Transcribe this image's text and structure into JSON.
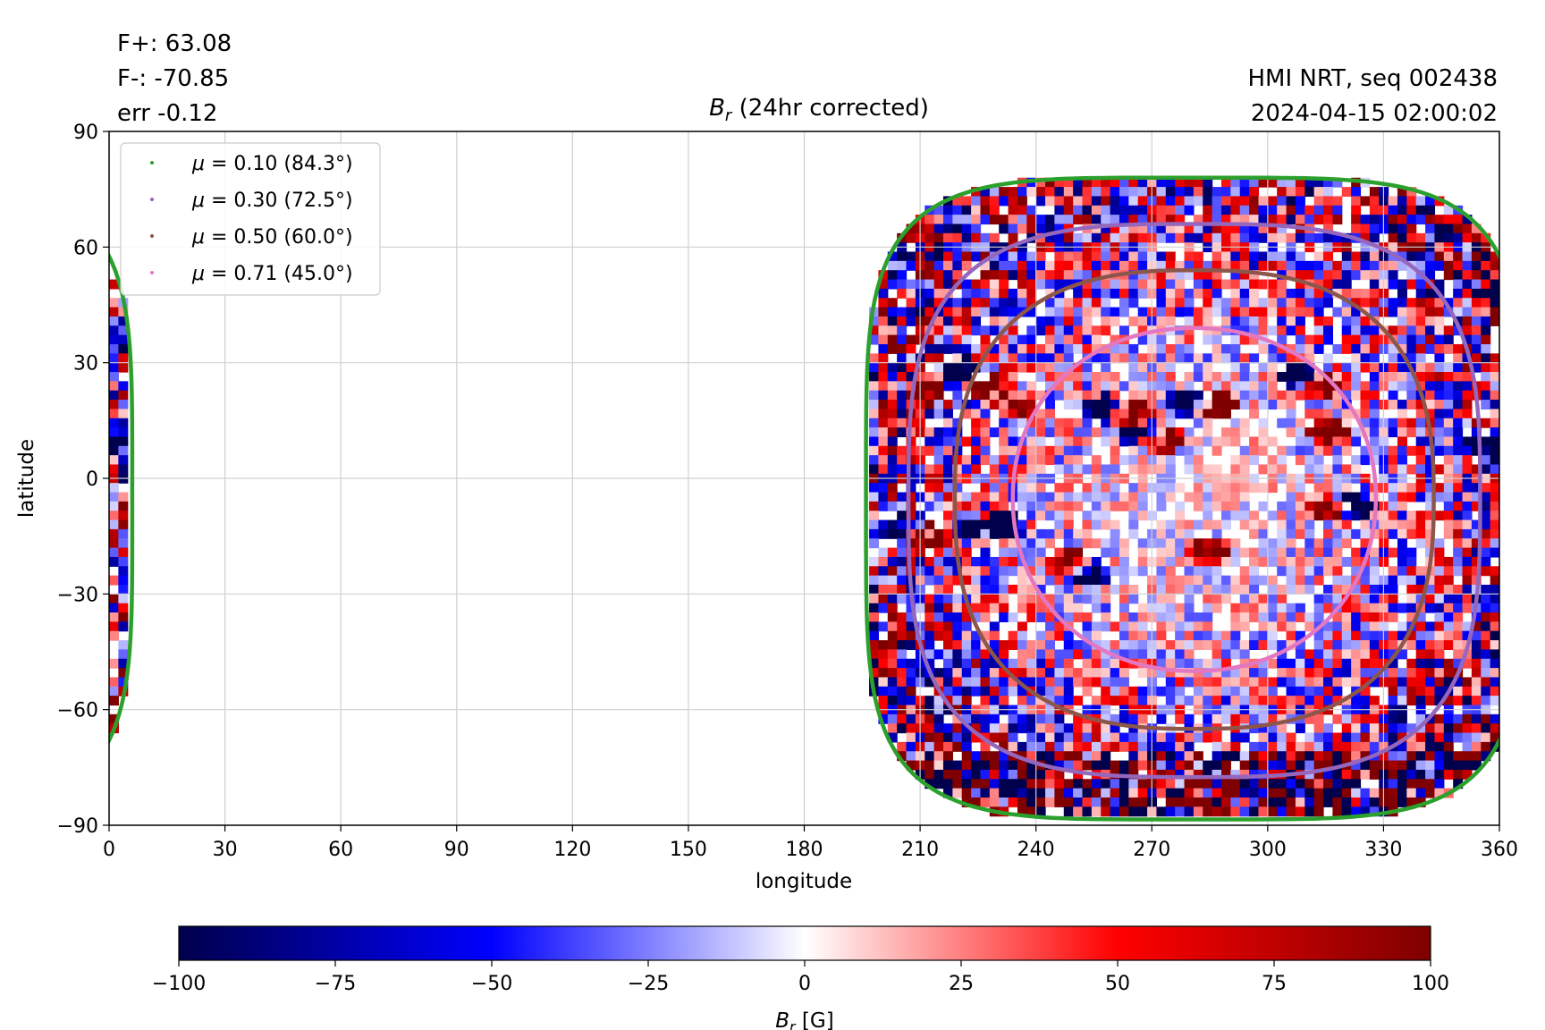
{
  "header": {
    "flux_pos": "F+: 63.08",
    "flux_neg": "F-: -70.85",
    "err": "err -0.12",
    "source": "HMI NRT, seq 002438",
    "timestamp": "2024-04-15 02:00:02",
    "title_symbol": "B",
    "title_sub": "r",
    "title_rest": " (24hr corrected)"
  },
  "chart_data": {
    "type": "heatmap",
    "title": "B_r (24hr corrected)",
    "xlabel": "longitude",
    "ylabel": "latitude",
    "xlim": [
      0,
      360
    ],
    "ylim": [
      -90,
      90
    ],
    "x_ticks": [
      0,
      30,
      60,
      90,
      120,
      150,
      180,
      210,
      240,
      270,
      300,
      330,
      360
    ],
    "x_tick_labels": [
      "0",
      "30",
      "60",
      "90",
      "120",
      "150",
      "180",
      "210",
      "240",
      "270",
      "300",
      "330",
      "360"
    ],
    "y_ticks": [
      -90,
      -60,
      -30,
      0,
      30,
      60,
      90
    ],
    "y_tick_labels": [
      "−90",
      "−60",
      "−30",
      "0",
      "30",
      "60",
      "90"
    ],
    "grid": true,
    "legend_position": "top-left",
    "disk_center_lon": 281,
    "disk_center_lat": -5,
    "series": [
      {
        "name": "μ = 0.10 (84.3°)",
        "label_mu": "μ",
        "label_text": " = 0.10 (84.3°)",
        "mu": 0.1,
        "angle_deg": 84.3,
        "color": "#2ca02c",
        "lon_radius": 85,
        "lat_top": 78,
        "lat_bottom": -88.5,
        "exp": 4.5
      },
      {
        "name": "μ = 0.30 (72.5°)",
        "label_mu": "μ",
        "label_text": " = 0.30 (72.5°)",
        "mu": 0.3,
        "angle_deg": 72.5,
        "color": "#9467bd",
        "lon_radius": 74,
        "lat_top": 66,
        "lat_bottom": -77.5,
        "exp": 3.2
      },
      {
        "name": "μ = 0.50 (60.0°)",
        "label_mu": "μ",
        "label_text": " = 0.50 (60.0°)",
        "mu": 0.5,
        "angle_deg": 60.0,
        "color": "#8c564b",
        "lon_radius": 62,
        "lat_top": 54,
        "lat_bottom": -65,
        "exp": 2.6
      },
      {
        "name": "μ = 0.71 (45.0°)",
        "label_mu": "μ",
        "label_text": " = 0.71 (45.0°)",
        "mu": 0.71,
        "angle_deg": 45.0,
        "color": "#e377c2",
        "lon_radius": 47,
        "lat_top": 39,
        "lat_bottom": -50,
        "exp": 2.1
      }
    ],
    "colorbar": {
      "label_symbol": "B",
      "label_sub": "r",
      "label_unit": " [G]",
      "min": -100,
      "max": 100,
      "ticks": [
        -100,
        -75,
        -50,
        -25,
        0,
        25,
        50,
        75,
        100
      ],
      "tick_labels": [
        "−100",
        "−75",
        "−50",
        "−25",
        "0",
        "25",
        "50",
        "75",
        "100"
      ],
      "colors": [
        "#00004c",
        "#0000ff",
        "#ffffff",
        "#ff0000",
        "#7f0000"
      ]
    },
    "active_regions": [
      {
        "lon": 220,
        "lat": 28,
        "polarity": -1
      },
      {
        "lon": 227,
        "lat": 24,
        "polarity": 1
      },
      {
        "lon": 212,
        "lat": 22,
        "polarity": 1
      },
      {
        "lon": 235,
        "lat": 19,
        "polarity": 1
      },
      {
        "lon": 258,
        "lat": 18,
        "polarity": -1
      },
      {
        "lon": 264,
        "lat": 17,
        "polarity": 1
      },
      {
        "lon": 280,
        "lat": 20,
        "polarity": -1
      },
      {
        "lon": 287,
        "lat": 19,
        "polarity": 1
      },
      {
        "lon": 268,
        "lat": 11,
        "polarity": -1
      },
      {
        "lon": 272,
        "lat": 10,
        "polarity": 1
      },
      {
        "lon": 308,
        "lat": 27,
        "polarity": -1
      },
      {
        "lon": 314,
        "lat": 24,
        "polarity": 1
      },
      {
        "lon": 316,
        "lat": 12,
        "polarity": 1
      },
      {
        "lon": 203,
        "lat": -13,
        "polarity": -1
      },
      {
        "lon": 212,
        "lat": -15,
        "polarity": 1
      },
      {
        "lon": 224,
        "lat": -13,
        "polarity": -1
      },
      {
        "lon": 232,
        "lat": -12,
        "polarity": -1
      },
      {
        "lon": 248,
        "lat": -22,
        "polarity": 1
      },
      {
        "lon": 253,
        "lat": -25,
        "polarity": -1
      },
      {
        "lon": 285,
        "lat": -19,
        "polarity": 1
      },
      {
        "lon": 316,
        "lat": -8,
        "polarity": 1
      },
      {
        "lon": 322,
        "lat": -7,
        "polarity": -1
      },
      {
        "lon": 357,
        "lat": 8,
        "polarity": -1
      },
      {
        "lon": 3,
        "lat": 8,
        "polarity": -1
      }
    ]
  }
}
